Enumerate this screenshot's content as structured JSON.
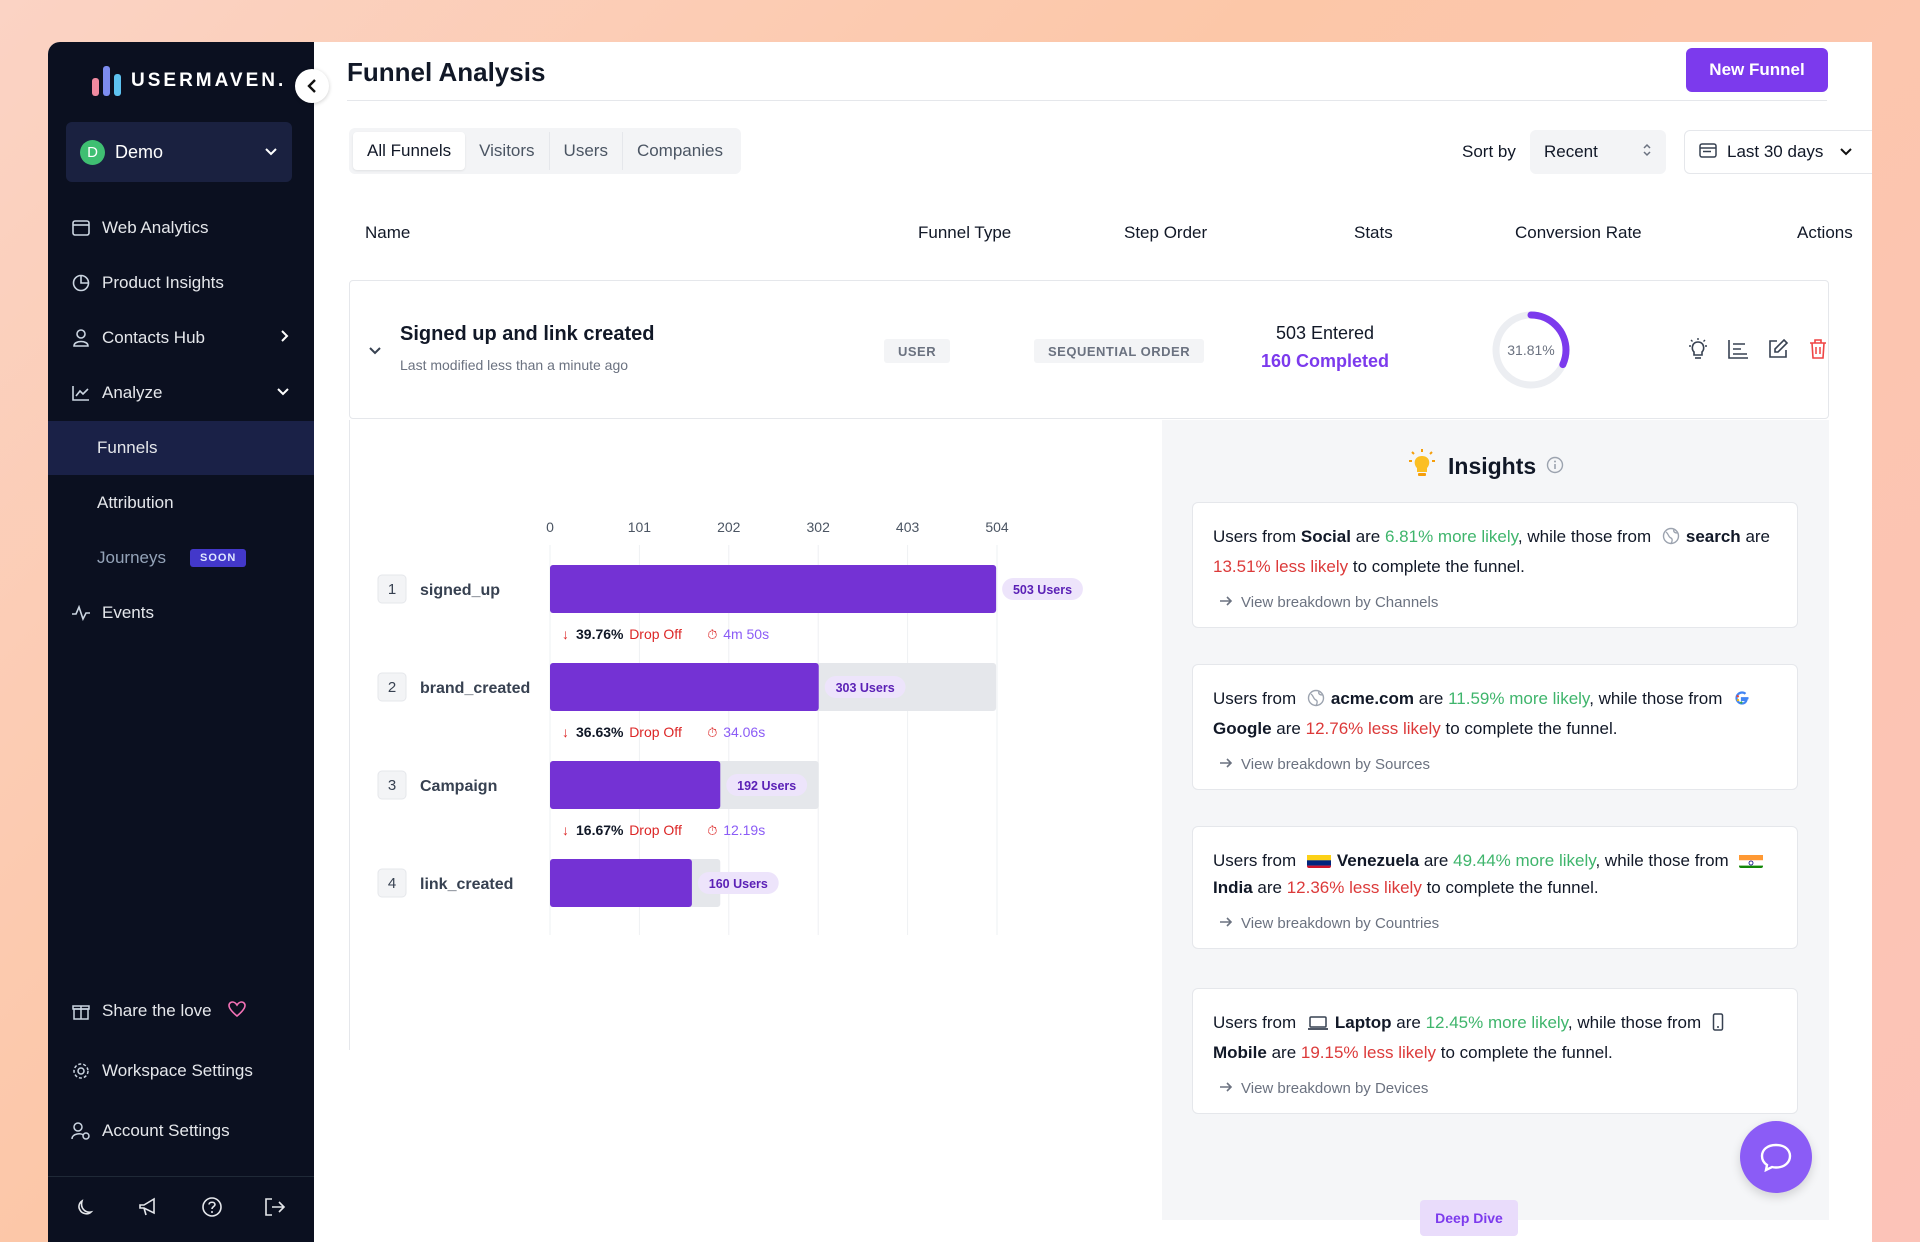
{
  "brand": {
    "name": "USERMAVEN.",
    "logo_colors": [
      "#f08aa0",
      "#7c8cf0",
      "#5dc2f0"
    ]
  },
  "workspace": {
    "avatar_letter": "D",
    "name": "Demo"
  },
  "sidebar": {
    "items": [
      {
        "label": "Web Analytics",
        "icon": "browser-icon"
      },
      {
        "label": "Product Insights",
        "icon": "pie-chart-icon"
      },
      {
        "label": "Contacts Hub",
        "icon": "user-icon"
      },
      {
        "label": "Analyze",
        "icon": "line-chart-icon"
      },
      {
        "label": "Funnels"
      },
      {
        "label": "Attribution"
      },
      {
        "label": "Journeys",
        "badge": "SOON"
      },
      {
        "label": "Events",
        "icon": "activity-icon"
      }
    ],
    "bottom_items": [
      {
        "label": "Share the love",
        "icon": "gift-icon"
      },
      {
        "label": "Workspace Settings",
        "icon": "gear-icon"
      },
      {
        "label": "Account Settings",
        "icon": "user-gear-icon"
      }
    ]
  },
  "header": {
    "title": "Funnel Analysis",
    "new_funnel_label": "New Funnel"
  },
  "tabs": [
    "All Funnels",
    "Visitors",
    "Users",
    "Companies"
  ],
  "sort": {
    "label": "Sort by",
    "value": "Recent"
  },
  "date_range": {
    "value": "Last 30 days"
  },
  "table": {
    "headers": [
      "Name",
      "Funnel Type",
      "Step Order",
      "Stats",
      "Conversion Rate",
      "Actions"
    ]
  },
  "funnel": {
    "title": "Signed up and link created",
    "subtitle": "Last modified less than a minute ago",
    "type": "USER",
    "order": "SEQUENTIAL ORDER",
    "entered": "503 Entered",
    "completed": "160 Completed",
    "conversion_rate_label": "31.81%",
    "conversion_rate": 0.3181
  },
  "chart_data": {
    "type": "bar",
    "orientation": "horizontal",
    "x_ticks": [
      "0",
      "101",
      "202",
      "302",
      "403",
      "504"
    ],
    "xlim": [
      0,
      504
    ],
    "categories": [
      "signed_up",
      "brand_created",
      "Campaign",
      "link_created"
    ],
    "step_numbers": [
      "1",
      "2",
      "3",
      "4"
    ],
    "values": [
      503,
      303,
      192,
      160
    ],
    "value_labels": [
      "503 Users",
      "303 Users",
      "192 Users",
      "160 Users"
    ],
    "previous_values": [
      503,
      503,
      303,
      192
    ],
    "dropoffs": [
      {
        "pct": "39.76%",
        "label": "Drop Off",
        "time": "4m 50s"
      },
      {
        "pct": "36.63%",
        "label": "Drop Off",
        "time": "34.06s"
      },
      {
        "pct": "16.67%",
        "label": "Drop Off",
        "time": "12.19s"
      }
    ],
    "bar_color": "#7432d4",
    "remainder_color": "#e5e7eb"
  },
  "insights": {
    "title": "Insights",
    "cards": [
      {
        "pre": "Users from",
        "src_a": "Social",
        "mid_a": "are",
        "more": "6.81% more likely",
        "mid_b": ", while those from",
        "src_b": "search",
        "mid_c": "are",
        "less": "13.51% less likely",
        "post": "to complete the funnel.",
        "link": "View breakdown by Channels"
      },
      {
        "pre": "Users from",
        "src_a": "acme.com",
        "mid_a": "are",
        "more": "11.59% more likely",
        "mid_b": ", while those from",
        "src_b": "Google",
        "mid_c": "are",
        "less": "12.76% less likely",
        "post": "to complete the funnel.",
        "link": "View breakdown by Sources"
      },
      {
        "pre": "Users from",
        "src_a": "Venezuela",
        "mid_a": "are",
        "more": "49.44% more likely",
        "mid_b": ", while those from",
        "src_b": "India",
        "mid_c": "are",
        "less": "12.36% less likely",
        "post": "to complete the funnel.",
        "link": "View breakdown by Countries"
      },
      {
        "pre": "Users from",
        "src_a": "Laptop",
        "mid_a": "are",
        "more": "12.45% more likely",
        "mid_b": ", while those from",
        "src_b": "Mobile",
        "mid_c": "are",
        "less": "19.15% less likely",
        "post": "to complete the funnel.",
        "link": "View breakdown by Devices"
      }
    ],
    "deep_dive_label": "Deep Dive"
  },
  "colors": {
    "accent": "#7c3aed",
    "positive": "#3fb56c",
    "negative": "#dc3a3a",
    "sidebar_bg": "#0b1020"
  }
}
